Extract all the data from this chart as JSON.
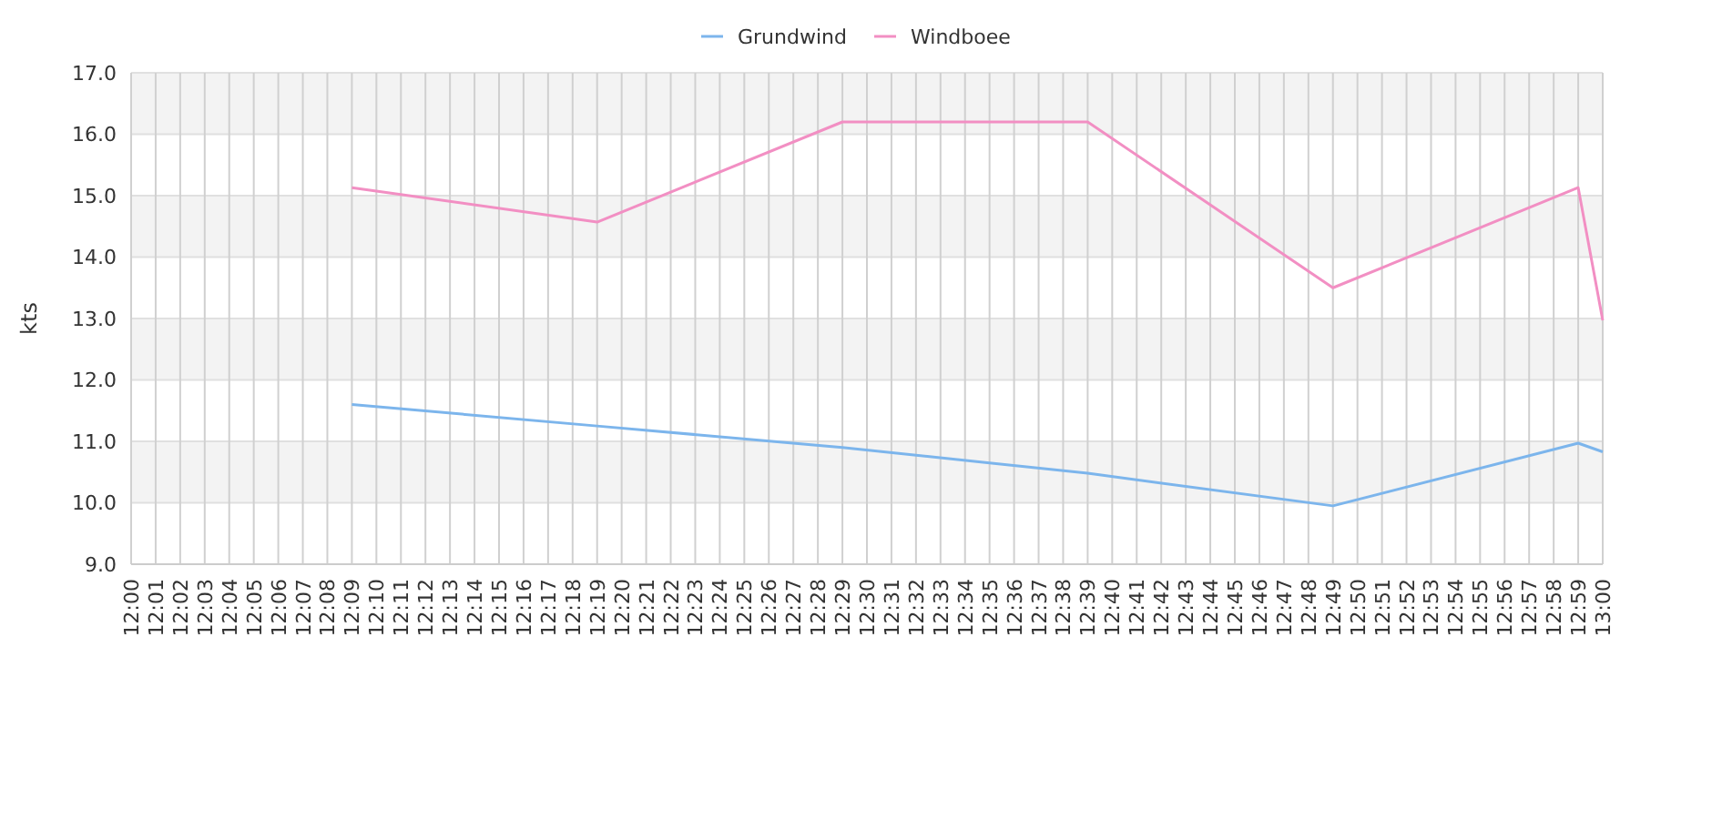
{
  "chart_data": {
    "type": "line",
    "ylabel": "kts",
    "categories": [
      "12:00",
      "12:01",
      "12:02",
      "12:03",
      "12:04",
      "12:05",
      "12:06",
      "12:07",
      "12:08",
      "12:09",
      "12:10",
      "12:11",
      "12:12",
      "12:13",
      "12:14",
      "12:15",
      "12:16",
      "12:17",
      "12:18",
      "12:19",
      "12:20",
      "12:21",
      "12:22",
      "12:23",
      "12:24",
      "12:25",
      "12:26",
      "12:27",
      "12:28",
      "12:29",
      "12:30",
      "12:31",
      "12:32",
      "12:33",
      "12:34",
      "12:35",
      "12:36",
      "12:37",
      "12:38",
      "12:39",
      "12:40",
      "12:41",
      "12:42",
      "12:43",
      "12:44",
      "12:45",
      "12:46",
      "12:47",
      "12:48",
      "12:49",
      "12:50",
      "12:51",
      "12:52",
      "12:53",
      "12:54",
      "12:55",
      "12:56",
      "12:57",
      "12:58",
      "12:59",
      "13:00"
    ],
    "series": [
      {
        "name": "Grundwind",
        "color": "#7cb5ec",
        "x": [
          "12:09",
          "12:19",
          "12:29",
          "12:39",
          "12:49",
          "12:59",
          "13:00"
        ],
        "values": [
          11.6,
          11.25,
          10.9,
          10.48,
          9.95,
          10.97,
          10.83
        ]
      },
      {
        "name": "Windboee",
        "color": "#f28fc3",
        "x": [
          "12:09",
          "12:19",
          "12:29",
          "12:39",
          "12:49",
          "12:59",
          "13:00"
        ],
        "values": [
          15.13,
          14.57,
          16.2,
          16.2,
          13.5,
          15.13,
          12.97
        ]
      }
    ],
    "ylim": [
      9,
      17
    ],
    "yticks": [
      {
        "value": 9,
        "label": "9.0"
      },
      {
        "value": 10,
        "label": "10.0"
      },
      {
        "value": 11,
        "label": "11.0"
      },
      {
        "value": 12,
        "label": "12.0"
      },
      {
        "value": 13,
        "label": "13.0"
      },
      {
        "value": 14,
        "label": "14.0"
      },
      {
        "value": 15,
        "label": "15.0"
      },
      {
        "value": 16,
        "label": "16.0"
      },
      {
        "value": 17,
        "label": "17.0"
      }
    ],
    "grid": true,
    "legend": "top",
    "marker": "none",
    "line_style": "solid"
  }
}
